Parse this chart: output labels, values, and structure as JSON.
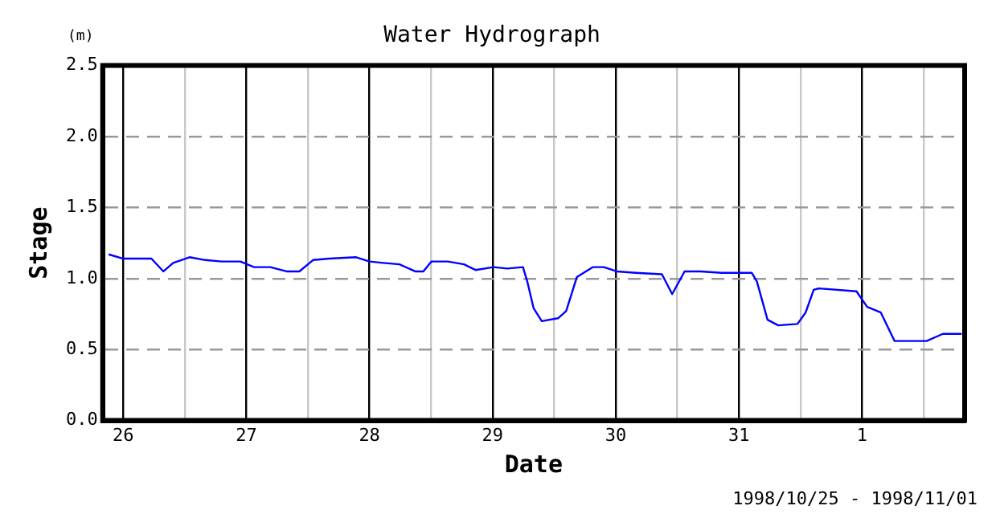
{
  "chart_data": {
    "type": "line",
    "title": "Water Hydrograph",
    "xlabel": "Date",
    "ylabel": "Stage",
    "annotations": [
      "(m)",
      "1998/10/25 - 1998/11/01"
    ],
    "x": [
      "1998-10-25T21:10",
      "1998-10-26T00:00",
      "1998-10-26T05:30",
      "1998-10-26T07:50",
      "1998-10-26T09:45",
      "1998-10-26T12:55",
      "1998-10-26T16:00",
      "1998-10-26T19:10",
      "1998-10-26T22:50",
      "1998-10-27T01:30",
      "1998-10-27T04:40",
      "1998-10-27T07:50",
      "1998-10-27T10:20",
      "1998-10-27T13:00",
      "1998-10-27T16:10",
      "1998-10-27T21:25",
      "1998-10-28T00:00",
      "1998-10-28T02:40",
      "1998-10-28T05:50",
      "1998-10-28T08:55",
      "1998-10-28T10:30",
      "1998-10-28T12:05",
      "1998-10-28T15:15",
      "1998-10-28T18:25",
      "1998-10-28T20:40",
      "1998-10-29T00:10",
      "1998-10-29T02:50",
      "1998-10-29T05:55",
      "1998-10-29T06:45",
      "1998-10-29T08:00",
      "1998-10-29T09:35",
      "1998-10-29T12:45",
      "1998-10-29T14:20",
      "1998-10-29T16:25",
      "1998-10-29T19:30",
      "1998-10-29T21:40",
      "1998-10-30T00:15",
      "1998-10-30T03:55",
      "1998-10-30T09:00",
      "1998-10-30T11:00",
      "1998-10-30T13:25",
      "1998-10-30T16:30",
      "1998-10-30T20:40",
      "1998-10-31T02:30",
      "1998-10-31T03:30",
      "1998-10-31T05:35",
      "1998-10-31T07:40",
      "1998-10-31T11:25",
      "1998-10-31T13:00",
      "1998-10-31T14:35",
      "1998-10-31T15:35",
      "1998-10-31T22:55",
      "1998-11-01T01:00",
      "1998-11-01T03:40",
      "1998-11-01T06:20",
      "1998-11-01T12:35",
      "1998-11-01T15:45",
      "1998-11-01T19:25"
    ],
    "series": [
      {
        "color": "#0000ff",
        "values": [
          1.17,
          1.14,
          1.14,
          1.05,
          1.11,
          1.15,
          1.13,
          1.12,
          1.12,
          1.08,
          1.08,
          1.05,
          1.05,
          1.13,
          1.14,
          1.15,
          1.12,
          1.11,
          1.1,
          1.05,
          1.05,
          1.12,
          1.12,
          1.1,
          1.06,
          1.08,
          1.07,
          1.08,
          0.98,
          0.79,
          0.7,
          0.72,
          0.77,
          1.01,
          1.08,
          1.08,
          1.05,
          1.04,
          1.03,
          0.89,
          1.05,
          1.05,
          1.04,
          1.04,
          0.98,
          0.71,
          0.67,
          0.68,
          0.76,
          0.92,
          0.93,
          0.91,
          0.8,
          0.76,
          0.56,
          0.56,
          0.61,
          0.61
        ]
      }
    ],
    "xlim": [
      "1998-10-25T20:00",
      "1998-11-01T20:00"
    ],
    "xticks": [
      {
        "value": "1998-10-26",
        "label": "26"
      },
      {
        "value": "1998-10-26T12:00",
        "label": null
      },
      {
        "value": "1998-10-27",
        "label": "27"
      },
      {
        "value": "1998-10-27T12:00",
        "label": null
      },
      {
        "value": "1998-10-28",
        "label": "28"
      },
      {
        "value": "1998-10-28T12:00",
        "label": null
      },
      {
        "value": "1998-10-29",
        "label": "29"
      },
      {
        "value": "1998-10-29T12:00",
        "label": null
      },
      {
        "value": "1998-10-30",
        "label": "30"
      },
      {
        "value": "1998-10-30T12:00",
        "label": null
      },
      {
        "value": "1998-10-31",
        "label": "31"
      },
      {
        "value": "1998-10-31T12:00",
        "label": null
      },
      {
        "value": "1998-11-01",
        "label": "1"
      },
      {
        "value": "1998-11-01T12:00",
        "label": null
      }
    ],
    "ylim": [
      0,
      2.5
    ],
    "yticks": [
      {
        "value": 0,
        "label": "0.0"
      },
      {
        "value": 0.5,
        "label": "0.5"
      },
      {
        "value": 1,
        "label": "1.0"
      },
      {
        "value": 1.5,
        "label": "1.5"
      },
      {
        "value": 2,
        "label": "2.0"
      },
      {
        "value": 2.5,
        "label": "2.5"
      }
    ],
    "grid": true,
    "legend": false,
    "marker": "none",
    "line_style": "solid"
  }
}
